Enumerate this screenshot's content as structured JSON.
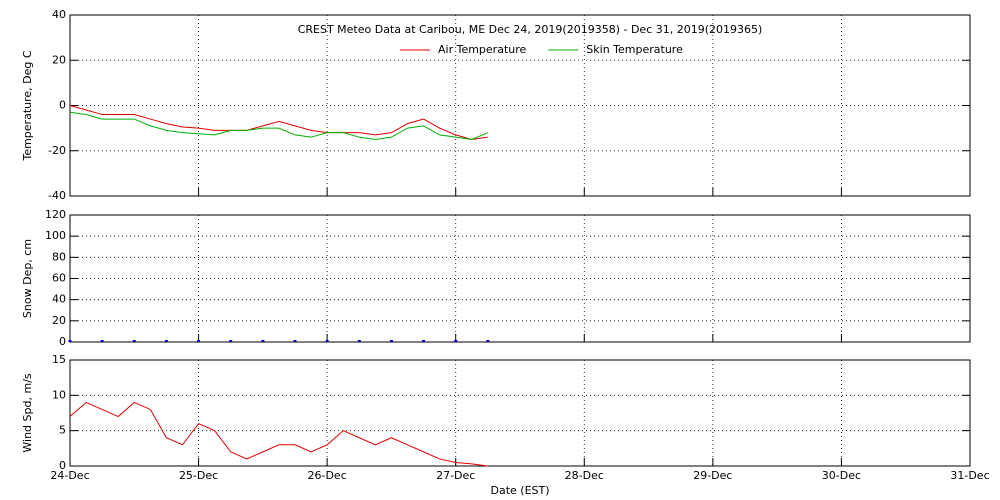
{
  "chart_data": [
    {
      "type": "line",
      "title": "CREST Meteo Data at Caribou, ME   Dec 24, 2019(2019358) - Dec 31, 2019(2019365)",
      "y_label": "Temperature, Deg C",
      "legend": "top",
      "x": [
        24.0,
        24.125,
        24.25,
        24.375,
        24.5,
        24.625,
        24.75,
        24.875,
        25.0,
        25.125,
        25.25,
        25.375,
        25.5,
        25.625,
        25.75,
        25.875,
        26.0,
        26.125,
        26.25,
        26.375,
        26.5,
        26.625,
        26.75,
        26.875,
        27.0,
        27.125,
        27.25
      ],
      "series": [
        {
          "name": "Air Temperature",
          "color": "#e00000",
          "values": [
            0,
            -2,
            -4,
            -4,
            -4,
            -6,
            -8,
            -9.5,
            -10,
            -11,
            -11,
            -11,
            -9,
            -7,
            -9,
            -11,
            -12,
            -12,
            -12,
            -13,
            -12,
            -8,
            -6,
            -10,
            -13,
            -15,
            -14
          ]
        },
        {
          "name": "Skin Temperature",
          "color": "#00b000",
          "values": [
            -3,
            -4,
            -6,
            -6,
            -6,
            -9,
            -11,
            -12,
            -12.5,
            -13,
            -11,
            -11,
            -10,
            -10,
            -13,
            -14,
            -12,
            -12,
            -14,
            -15,
            -14,
            -10,
            -9,
            -13,
            -14,
            -15,
            -12
          ]
        }
      ],
      "xlim": [
        24,
        31
      ],
      "xticks": [
        24,
        25,
        26,
        27,
        28,
        29,
        30,
        31
      ],
      "ylim": [
        -40,
        40
      ],
      "yticks": [
        -40,
        -20,
        0,
        20,
        40
      ],
      "grid": true
    },
    {
      "type": "scatter",
      "y_label": "Snow Dep, cm",
      "color": "#0000cc",
      "x": [
        24.0,
        24.25,
        24.5,
        24.75,
        25.0,
        25.25,
        25.5,
        25.75,
        26.0,
        26.25,
        26.5,
        26.75,
        27.0,
        27.25
      ],
      "values": [
        0,
        0,
        0,
        0,
        0,
        0,
        0,
        0,
        0,
        0,
        0,
        0,
        0,
        0
      ],
      "xlim": [
        24,
        31
      ],
      "xticks": [
        24,
        25,
        26,
        27,
        28,
        29,
        30,
        31
      ],
      "ylim": [
        0,
        120
      ],
      "yticks": [
        0,
        20,
        40,
        60,
        80,
        100,
        120
      ],
      "grid": true
    },
    {
      "type": "line",
      "y_label": "Wind Spd, m/s",
      "x_label": "Date (EST)",
      "color": "#e00000",
      "x": [
        24.0,
        24.125,
        24.25,
        24.375,
        24.5,
        24.625,
        24.75,
        24.875,
        25.0,
        25.125,
        25.25,
        25.375,
        25.5,
        25.625,
        25.75,
        25.875,
        26.0,
        26.125,
        26.25,
        26.375,
        26.5,
        26.625,
        26.75,
        26.875,
        27.0,
        27.125,
        27.25
      ],
      "values": [
        7,
        9,
        8,
        7,
        9,
        8,
        4,
        3,
        6,
        5,
        2,
        1,
        2,
        3,
        3,
        2,
        3,
        5,
        4,
        3,
        4,
        3,
        2,
        1,
        0.5,
        0.3,
        0
      ],
      "xlim": [
        24,
        31
      ],
      "xticks": [
        {
          "value": 24,
          "label": "24-Dec"
        },
        {
          "value": 25,
          "label": "25-Dec"
        },
        {
          "value": 26,
          "label": "26-Dec"
        },
        {
          "value": 27,
          "label": "27-Dec"
        },
        {
          "value": 28,
          "label": "28-Dec"
        },
        {
          "value": 29,
          "label": "29-Dec"
        },
        {
          "value": 30,
          "label": "30-Dec"
        },
        {
          "value": 31,
          "label": "31-Dec"
        }
      ],
      "ylim": [
        0,
        15
      ],
      "yticks": [
        0,
        5,
        10,
        15
      ],
      "grid": true
    }
  ]
}
